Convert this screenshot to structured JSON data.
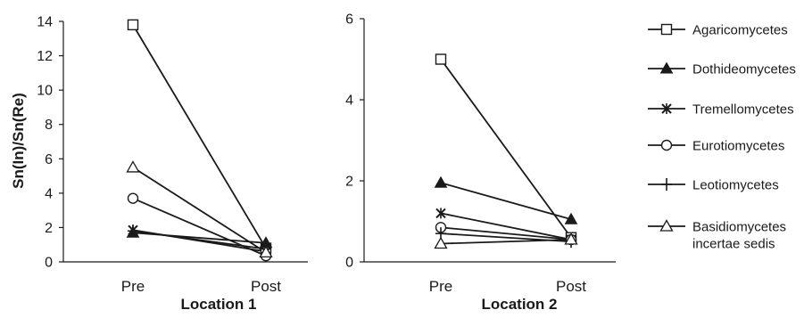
{
  "chart_data": [
    {
      "type": "line",
      "title": "Location 1",
      "ylabel": "Sn(In)/Sn(Re)",
      "categories": [
        "Pre",
        "Post"
      ],
      "ylim": [
        0,
        14
      ],
      "yticks": [
        "0",
        "2",
        "4",
        "6",
        "8",
        "10",
        "12",
        "14"
      ],
      "series": [
        {
          "name": "Agaricomycetes",
          "marker": "open-square",
          "values": [
            13.8,
            0.8
          ]
        },
        {
          "name": "Dothideomycetes",
          "marker": "filled-triangle",
          "values": [
            1.7,
            1.1
          ]
        },
        {
          "name": "Tremellomycetes",
          "marker": "asterisk",
          "values": [
            1.85,
            0.6
          ]
        },
        {
          "name": "Eurotiomycetes",
          "marker": "open-circle",
          "values": [
            3.7,
            0.35
          ]
        },
        {
          "name": "Leotiomycetes",
          "marker": "plus",
          "values": [
            1.8,
            0.75
          ]
        },
        {
          "name": "Basidiomycetes incertae sedis",
          "marker": "open-triangle",
          "values": [
            5.5,
            0.55
          ]
        }
      ]
    },
    {
      "type": "line",
      "title": "Location 2",
      "categories": [
        "Pre",
        "Post"
      ],
      "ylim": [
        0,
        6
      ],
      "yticks": [
        "0",
        "2",
        "4",
        "6"
      ],
      "series": [
        {
          "name": "Agaricomycetes",
          "marker": "open-square",
          "values": [
            5.0,
            0.6
          ]
        },
        {
          "name": "Dothideomycetes",
          "marker": "filled-triangle",
          "values": [
            1.95,
            1.05
          ]
        },
        {
          "name": "Tremellomycetes",
          "marker": "asterisk",
          "values": [
            1.2,
            0.55
          ]
        },
        {
          "name": "Eurotiomycetes",
          "marker": "open-circle",
          "values": [
            0.85,
            0.55
          ]
        },
        {
          "name": "Leotiomycetes",
          "marker": "plus",
          "values": [
            0.7,
            0.5
          ]
        },
        {
          "name": "Basidiomycetes incertae sedis",
          "marker": "open-triangle",
          "values": [
            0.45,
            0.55
          ]
        }
      ]
    }
  ],
  "legend": {
    "placement": "right",
    "items": [
      {
        "marker": "open-square",
        "lines": [
          "Agaricomycetes"
        ]
      },
      {
        "marker": "filled-triangle",
        "lines": [
          "Dothideomycetes"
        ]
      },
      {
        "marker": "asterisk",
        "lines": [
          "Tremellomycetes"
        ]
      },
      {
        "marker": "open-circle",
        "lines": [
          "Eurotiomycetes"
        ]
      },
      {
        "marker": "plus",
        "lines": [
          "Leotiomycetes"
        ]
      },
      {
        "marker": "open-triangle",
        "lines": [
          "Basidiomycetes",
          "incertae sedis"
        ]
      }
    ]
  },
  "colors": {
    "ink": "#1a1a1a",
    "background": "#ffffff"
  }
}
